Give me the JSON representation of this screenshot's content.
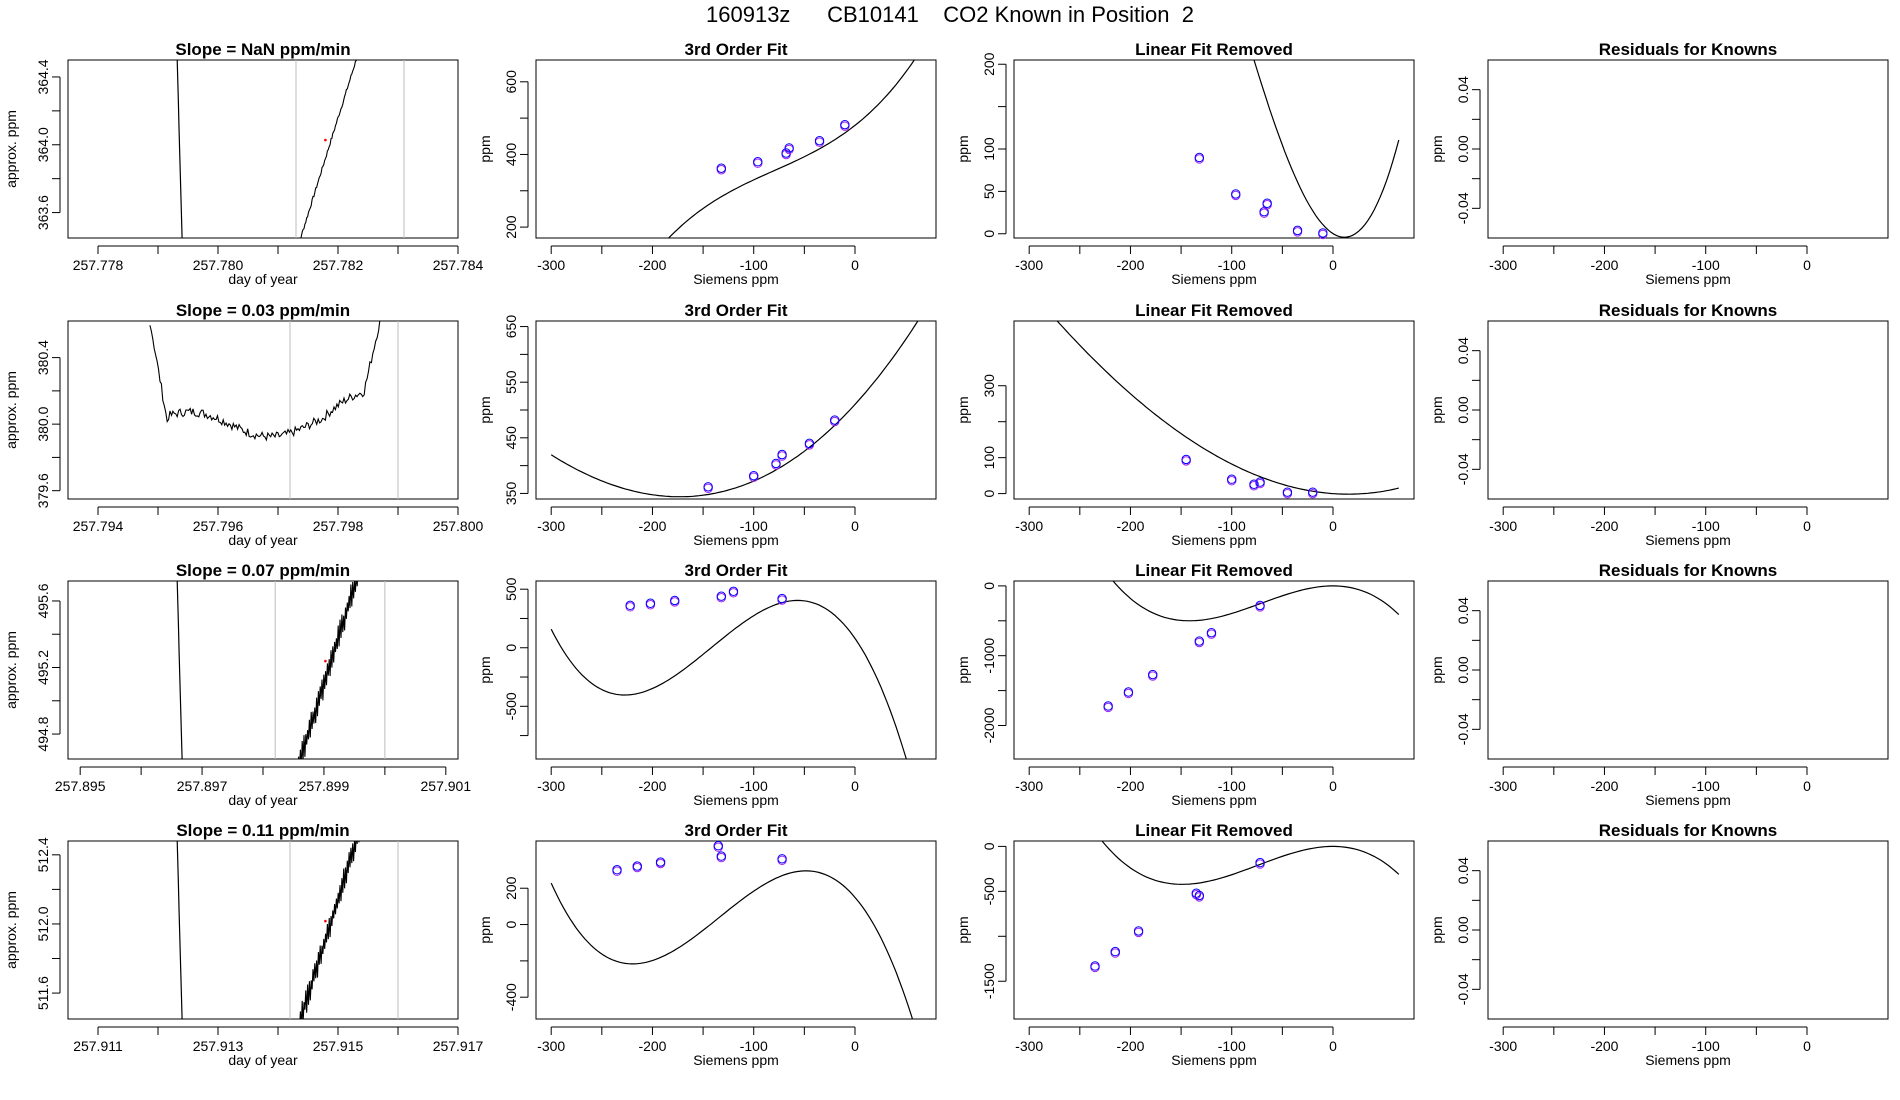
{
  "page_title": "160913z      CB10141    CO2 Known in Position  2",
  "colors": {
    "known": "#0000ff",
    "known_alt": "#a020f0",
    "grid": "#bebebe",
    "line": "#000000",
    "marker": "#ff0000"
  },
  "chart_data": [
    {
      "type": "line",
      "row": 0,
      "col": 0,
      "title": "Slope =  NaN  ppm/min",
      "xlabel": "day of year",
      "ylabel": "approx. ppm",
      "xlim": [
        257.7775,
        257.784
      ],
      "ylim": [
        363.45,
        364.5
      ],
      "xticks": [
        257.778,
        257.78,
        257.782,
        257.784
      ],
      "xtick_labels": [
        "257.778",
        "257.780",
        "257.782",
        "257.784"
      ],
      "xticks_minor": [
        257.779,
        257.781,
        257.783
      ],
      "yticks": [
        363.6,
        364.0,
        364.4
      ],
      "ytick_labels": [
        "363.6",
        "364.0",
        "364.4"
      ],
      "yticks_minor": [
        363.8,
        364.2
      ],
      "vlines": [
        257.7813,
        257.7831
      ],
      "trend": "decline-rise"
    },
    {
      "type": "line",
      "row": 0,
      "col": 1,
      "title": "3rd Order Fit",
      "xlabel": "Siemens ppm",
      "ylabel": "ppm",
      "xlim": [
        -315,
        80
      ],
      "ylim": [
        170,
        660
      ],
      "xticks": [
        -300,
        -200,
        -100,
        0
      ],
      "xtick_labels": [
        "-300",
        "-200",
        "-100",
        "0"
      ],
      "xticks_minor": [
        -250,
        -150,
        -50
      ],
      "yticks": [
        200,
        400,
        600
      ],
      "ytick_labels": [
        "200",
        "400",
        "600"
      ],
      "yticks_minor": [
        300,
        500
      ],
      "curve": {
        "x0": -300,
        "x1": 65,
        "a": 480,
        "b": 2.2,
        "c": 0.012,
        "d": 5e-05
      },
      "points": [
        {
          "x": -132,
          "y": 362
        },
        {
          "x": -96,
          "y": 380
        },
        {
          "x": -68,
          "y": 404
        },
        {
          "x": -65,
          "y": 418
        },
        {
          "x": -35,
          "y": 438
        },
        {
          "x": -10,
          "y": 482
        }
      ]
    },
    {
      "type": "line",
      "row": 0,
      "col": 2,
      "title": "Linear Fit Removed",
      "xlabel": "Siemens ppm",
      "ylabel": "ppm",
      "xlim": [
        -315,
        80
      ],
      "ylim": [
        -5,
        205
      ],
      "xticks": [
        -300,
        -200,
        -100,
        0
      ],
      "xtick_labels": [
        "-300",
        "-200",
        "-100",
        "0"
      ],
      "xticks_minor": [
        -250,
        -150,
        -50
      ],
      "yticks": [
        0,
        50,
        100,
        200
      ],
      "ytick_labels": [
        "0",
        "50",
        "100",
        "200"
      ],
      "yticks_minor": [
        150
      ],
      "curve": {
        "x0": -300,
        "x1": 65,
        "a": 0.2,
        "b": -0.75,
        "c": 0.0315,
        "d": 9.5e-05
      },
      "points": [
        {
          "x": -132,
          "y": 90
        },
        {
          "x": -96,
          "y": 47
        },
        {
          "x": -68,
          "y": 26
        },
        {
          "x": -65,
          "y": 36
        },
        {
          "x": -35,
          "y": 4
        },
        {
          "x": -10,
          "y": 1
        }
      ]
    },
    {
      "type": "line",
      "row": 0,
      "col": 3,
      "title": "Residuals for Knowns",
      "xlabel": "Siemens ppm",
      "ylabel": "ppm",
      "xlim": [
        -315,
        80
      ],
      "ylim": [
        -0.06,
        0.06
      ],
      "xticks": [
        -300,
        -200,
        -100,
        0
      ],
      "xtick_labels": [
        "-300",
        "-200",
        "-100",
        "0"
      ],
      "xticks_minor": [
        -250,
        -150,
        -50
      ],
      "yticks": [
        -0.04,
        0.0,
        0.04
      ],
      "ytick_labels": [
        "-0.04",
        "0.00",
        "0.04"
      ],
      "yticks_minor": [
        -0.02,
        0.02
      ]
    },
    {
      "type": "line",
      "row": 1,
      "col": 0,
      "title": "Slope =  0.03  ppm/min",
      "xlabel": "day of year",
      "ylabel": "approx. ppm",
      "xlim": [
        257.7935,
        257.8
      ],
      "ylim": [
        379.55,
        380.62
      ],
      "xticks": [
        257.794,
        257.796,
        257.798,
        257.8
      ],
      "xtick_labels": [
        "257.794",
        "257.796",
        "257.798",
        "257.800"
      ],
      "xticks_minor": [
        257.795,
        257.797,
        257.799
      ],
      "yticks": [
        379.6,
        380.0,
        380.4
      ],
      "ytick_labels": [
        "379.6",
        "380.0",
        "380.4"
      ],
      "yticks_minor": [
        379.8,
        380.2
      ],
      "vlines": [
        257.7972,
        257.799
      ],
      "trend": "u-shape"
    },
    {
      "type": "line",
      "row": 1,
      "col": 1,
      "title": "3rd Order Fit",
      "xlabel": "Siemens ppm",
      "ylabel": "ppm",
      "xlim": [
        -315,
        80
      ],
      "ylim": [
        340,
        660
      ],
      "xticks": [
        -300,
        -200,
        -100,
        0
      ],
      "xtick_labels": [
        "-300",
        "-200",
        "-100",
        "0"
      ],
      "xticks_minor": [
        -250,
        -150,
        -50
      ],
      "yticks": [
        350,
        450,
        550,
        650
      ],
      "ytick_labels": [
        "350",
        "450",
        "550",
        "650"
      ],
      "yticks_minor": [
        400,
        500,
        600
      ],
      "curve": {
        "x0": -300,
        "x1": 65,
        "a": 510,
        "b": 2.0,
        "c": 0.0065,
        "d": 2.8e-06
      },
      "points": [
        {
          "x": -145,
          "y": 362
        },
        {
          "x": -100,
          "y": 382
        },
        {
          "x": -78,
          "y": 404
        },
        {
          "x": -72,
          "y": 420
        },
        {
          "x": -45,
          "y": 440
        },
        {
          "x": -20,
          "y": 482
        }
      ]
    },
    {
      "type": "line",
      "row": 1,
      "col": 2,
      "title": "Linear Fit Removed",
      "xlabel": "Siemens ppm",
      "ylabel": "ppm",
      "xlim": [
        -315,
        80
      ],
      "ylim": [
        -15,
        480
      ],
      "xticks": [
        -300,
        -200,
        -100,
        0
      ],
      "xtick_labels": [
        "-300",
        "-200",
        "-100",
        "0"
      ],
      "xticks_minor": [
        -250,
        -150,
        -50
      ],
      "yticks": [
        0,
        100,
        300
      ],
      "ytick_labels": [
        "0",
        "100",
        "300"
      ],
      "yticks_minor": [
        200
      ],
      "curve": {
        "x0": -300,
        "x1": 65,
        "a": 0,
        "b": -0.2,
        "c": 0.0065,
        "d": 2.8e-06
      },
      "points": [
        {
          "x": -145,
          "y": 95
        },
        {
          "x": -100,
          "y": 40
        },
        {
          "x": -78,
          "y": 26
        },
        {
          "x": -72,
          "y": 32
        },
        {
          "x": -45,
          "y": 4
        },
        {
          "x": -20,
          "y": 4
        }
      ]
    },
    {
      "type": "line",
      "row": 1,
      "col": 3,
      "title": "Residuals for Knowns",
      "xlabel": "Siemens ppm",
      "ylabel": "ppm",
      "xlim": [
        -315,
        80
      ],
      "ylim": [
        -0.06,
        0.06
      ],
      "xticks": [
        -300,
        -200,
        -100,
        0
      ],
      "xtick_labels": [
        "-300",
        "-200",
        "-100",
        "0"
      ],
      "xticks_minor": [
        -250,
        -150,
        -50
      ],
      "yticks": [
        -0.04,
        0.0,
        0.04
      ],
      "ytick_labels": [
        "-0.04",
        "0.00",
        "0.04"
      ],
      "yticks_minor": [
        -0.02,
        0.02
      ]
    },
    {
      "type": "line",
      "row": 2,
      "col": 0,
      "title": "Slope =  0.07  ppm/min",
      "xlabel": "day of year",
      "ylabel": "approx. ppm",
      "xlim": [
        257.8948,
        257.9012
      ],
      "ylim": [
        494.65,
        495.72
      ],
      "xticks": [
        257.895,
        257.897,
        257.899,
        257.901
      ],
      "xtick_labels": [
        "257.895",
        "257.897",
        "257.899",
        "257.901"
      ],
      "xticks_minor": [
        257.896,
        257.898,
        257.9
      ],
      "yticks": [
        494.8,
        495.2,
        495.6
      ],
      "ytick_labels": [
        "494.8",
        "495.2",
        "495.6"
      ],
      "yticks_minor": [
        495.0,
        495.4
      ],
      "vlines": [
        257.8982,
        257.9
      ],
      "trend": "decline-rise-noisy"
    },
    {
      "type": "line",
      "row": 2,
      "col": 1,
      "title": "3rd Order Fit",
      "xlabel": "Siemens ppm",
      "ylabel": "ppm",
      "xlim": [
        -315,
        80
      ],
      "ylim": [
        -950,
        570
      ],
      "xticks": [
        -300,
        -200,
        -100,
        0
      ],
      "xtick_labels": [
        "-300",
        "-200",
        "-100",
        "0"
      ],
      "xticks_minor": [
        -250,
        -150,
        -50
      ],
      "yticks": [
        -500,
        0,
        500
      ],
      "ytick_labels": [
        "-500",
        "0",
        "500"
      ],
      "yticks_minor": [
        -750,
        -250,
        250
      ],
      "curve": {
        "x0": -300,
        "x1": 65,
        "a": 80,
        "b": -12.5,
        "c": -0.138,
        "d": -0.000324
      },
      "points": [
        {
          "x": -222,
          "y": 362
        },
        {
          "x": -202,
          "y": 380
        },
        {
          "x": -178,
          "y": 404
        },
        {
          "x": -132,
          "y": 440
        },
        {
          "x": -120,
          "y": 482
        },
        {
          "x": -72,
          "y": 420
        }
      ]
    },
    {
      "type": "line",
      "row": 2,
      "col": 2,
      "title": "Linear Fit Removed",
      "xlabel": "Siemens ppm",
      "ylabel": "ppm",
      "xlim": [
        -315,
        80
      ],
      "ylim": [
        -2480,
        70
      ],
      "xticks": [
        -300,
        -200,
        -100,
        0
      ],
      "xtick_labels": [
        "-300",
        "-200",
        "-100",
        "0"
      ],
      "xticks_minor": [
        -250,
        -150,
        -50
      ],
      "yticks": [
        -2000,
        -1000,
        0
      ],
      "ytick_labels": [
        "-2000",
        "-1000",
        "0"
      ],
      "yticks_minor": [
        -1500,
        -500
      ],
      "curve": {
        "x0": -300,
        "x1": 65,
        "a": 0,
        "b": 0,
        "c": -0.0745,
        "d": -0.00035
      },
      "points": [
        {
          "x": -222,
          "y": -1720
        },
        {
          "x": -202,
          "y": -1520
        },
        {
          "x": -178,
          "y": -1270
        },
        {
          "x": -132,
          "y": -790
        },
        {
          "x": -120,
          "y": -670
        },
        {
          "x": -72,
          "y": -280
        }
      ]
    },
    {
      "type": "line",
      "row": 2,
      "col": 3,
      "title": "Residuals for Knowns",
      "xlabel": "Siemens ppm",
      "ylabel": "ppm",
      "xlim": [
        -315,
        80
      ],
      "ylim": [
        -0.06,
        0.06
      ],
      "xticks": [
        -300,
        -200,
        -100,
        0
      ],
      "xtick_labels": [
        "-300",
        "-200",
        "-100",
        "0"
      ],
      "xticks_minor": [
        -250,
        -150,
        -50
      ],
      "yticks": [
        -0.04,
        0.0,
        0.04
      ],
      "ytick_labels": [
        "-0.04",
        "0.00",
        "0.04"
      ],
      "yticks_minor": [
        -0.02,
        0.02
      ]
    },
    {
      "type": "line",
      "row": 3,
      "col": 0,
      "title": "Slope =  0.11  ppm/min",
      "xlabel": "day of year",
      "ylabel": "approx. ppm",
      "xlim": [
        257.9105,
        257.917
      ],
      "ylim": [
        511.45,
        512.48
      ],
      "xticks": [
        257.911,
        257.913,
        257.915,
        257.917
      ],
      "xtick_labels": [
        "257.911",
        "257.913",
        "257.915",
        "257.917"
      ],
      "xticks_minor": [
        257.912,
        257.914,
        257.916
      ],
      "yticks": [
        511.6,
        512.0,
        512.4
      ],
      "ytick_labels": [
        "511.6",
        "512.0",
        "512.4"
      ],
      "yticks_minor": [
        511.8,
        512.2
      ],
      "vlines": [
        257.9142,
        257.916
      ],
      "trend": "decline-rise-noisy"
    },
    {
      "type": "line",
      "row": 3,
      "col": 1,
      "title": "3rd Order Fit",
      "xlabel": "Siemens ppm",
      "ylabel": "ppm",
      "xlim": [
        -315,
        80
      ],
      "ylim": [
        -520,
        460
      ],
      "xticks": [
        -300,
        -200,
        -100,
        0
      ],
      "xtick_labels": [
        "-300",
        "-200",
        "-100",
        "0"
      ],
      "xticks_minor": [
        -250,
        -150,
        -50
      ],
      "yticks": [
        -400,
        0,
        200
      ],
      "ytick_labels": [
        "-400",
        "0",
        "200"
      ],
      "yticks_minor": [
        -200
      ],
      "curve": {
        "x0": -300,
        "x1": 65,
        "a": 150,
        "b": -6.5,
        "c": -0.082,
        "d": -0.000204
      },
      "points": [
        {
          "x": -235,
          "y": 302
        },
        {
          "x": -215,
          "y": 322
        },
        {
          "x": -192,
          "y": 344
        },
        {
          "x": -135,
          "y": 434
        },
        {
          "x": -132,
          "y": 377
        },
        {
          "x": -72,
          "y": 362
        }
      ]
    },
    {
      "type": "line",
      "row": 3,
      "col": 2,
      "title": "Linear Fit Removed",
      "xlabel": "Siemens ppm",
      "ylabel": "ppm",
      "xlim": [
        -315,
        80
      ],
      "ylim": [
        -1920,
        60
      ],
      "xticks": [
        -300,
        -200,
        -100,
        0
      ],
      "xtick_labels": [
        "-300",
        "-200",
        "-100",
        "0"
      ],
      "xticks_minor": [
        -250,
        -150,
        -50
      ],
      "yticks": [
        -1500,
        -500,
        0
      ],
      "ytick_labels": [
        "-1500",
        "-500",
        "0"
      ],
      "yticks_minor": [
        -1000
      ],
      "curve": {
        "x0": -300,
        "x1": 65,
        "a": 0,
        "b": 0,
        "c": -0.057,
        "d": -0.000255
      },
      "points": [
        {
          "x": -235,
          "y": -1330
        },
        {
          "x": -215,
          "y": -1170
        },
        {
          "x": -192,
          "y": -940
        },
        {
          "x": -135,
          "y": -520
        },
        {
          "x": -132,
          "y": -545
        },
        {
          "x": -72,
          "y": -180
        }
      ]
    },
    {
      "type": "line",
      "row": 3,
      "col": 3,
      "title": "Residuals for Knowns",
      "xlabel": "Siemens ppm",
      "ylabel": "ppm",
      "xlim": [
        -315,
        80
      ],
      "ylim": [
        -0.06,
        0.06
      ],
      "xticks": [
        -300,
        -200,
        -100,
        0
      ],
      "xtick_labels": [
        "-300",
        "-200",
        "-100",
        "0"
      ],
      "xticks_minor": [
        -250,
        -150,
        -50
      ],
      "yticks": [
        -0.04,
        0.0,
        0.04
      ],
      "ytick_labels": [
        "-0.04",
        "0.00",
        "0.04"
      ],
      "yticks_minor": [
        -0.02,
        0.02
      ]
    }
  ]
}
